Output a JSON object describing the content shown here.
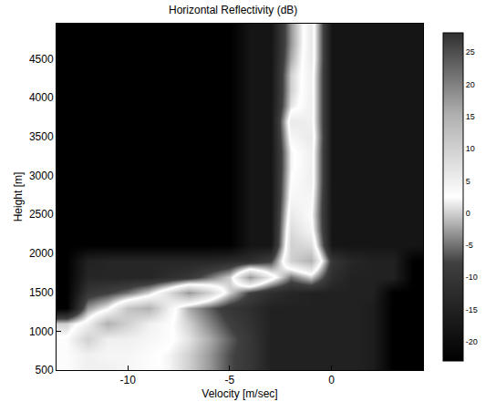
{
  "chart_data": {
    "type": "heatmap",
    "title": "Horizontal Reflectivity (dB)",
    "x_label": "Velocity [m/sec]",
    "y_label": "Height [m]",
    "x": [
      -13,
      -12,
      -11,
      -10,
      -9,
      -8,
      -7,
      -6,
      -5,
      -4,
      -3,
      -2,
      -1,
      0,
      1,
      2,
      3,
      4
    ],
    "y": [
      500,
      700,
      900,
      1100,
      1300,
      1500,
      1700,
      1900,
      2100,
      2300,
      2500,
      2700,
      2900,
      3100,
      3300,
      3500,
      3700,
      3900,
      4100,
      4300,
      4500,
      4700,
      4900
    ],
    "z": [
      [
        3,
        5,
        5,
        4,
        3,
        2,
        0,
        -3,
        -7,
        -10,
        -15,
        -15,
        -15,
        -15,
        -15,
        -16,
        -23,
        -23
      ],
      [
        3,
        5,
        4,
        4,
        3,
        2,
        0,
        -3,
        -7,
        -10,
        -15,
        -15,
        -15,
        -15,
        -15,
        -16,
        -23,
        -23
      ],
      [
        3,
        10,
        5,
        5,
        4,
        3,
        1,
        -2,
        -6,
        -10,
        -15,
        -15,
        -15,
        -15,
        -15,
        -16,
        -23,
        -23
      ],
      [
        0,
        5,
        15,
        10,
        5,
        3,
        0,
        -4,
        -8,
        -11,
        -15,
        -15,
        -15,
        -15,
        -15,
        -16,
        -23,
        -23
      ],
      [
        -23,
        -3,
        2,
        12,
        15,
        5,
        -2,
        -6,
        -10,
        -12,
        -15,
        -15,
        -15,
        -15,
        -15,
        -16,
        -23,
        -23
      ],
      [
        -23,
        -10,
        -8,
        -5,
        0,
        8,
        18,
        10,
        0,
        -8,
        -12,
        -14,
        -15,
        -15,
        -15,
        -15,
        -23,
        -23
      ],
      [
        -23,
        -14,
        -14,
        -14,
        -14,
        -12,
        -10,
        -5,
        0,
        18,
        5,
        -5,
        0,
        -12,
        -15,
        -15,
        -15,
        -23
      ],
      [
        -23,
        -15,
        -14,
        -14,
        -14,
        -14,
        -14,
        -14,
        -13,
        -12,
        -8,
        10,
        15,
        -10,
        -14,
        -15,
        -15,
        -23
      ],
      [
        -23,
        -23,
        -23,
        -23,
        -23,
        -23,
        -23,
        -23,
        -23,
        -18,
        -18,
        10,
        8,
        -18,
        -18,
        -18,
        -18,
        -18
      ],
      [
        -23,
        -23,
        -23,
        -23,
        -23,
        -23,
        -23,
        -23,
        -23,
        -18,
        -18,
        8,
        4,
        -18,
        -18,
        -18,
        -18,
        -18
      ],
      [
        -23,
        -23,
        -23,
        -23,
        -23,
        -23,
        -23,
        -23,
        -23,
        -18,
        -18,
        6,
        3,
        -18,
        -18,
        -18,
        -18,
        -18
      ],
      [
        -23,
        -23,
        -23,
        -23,
        -23,
        -23,
        -23,
        -23,
        -23,
        -18,
        -18,
        4,
        4,
        -18,
        -18,
        -18,
        -18,
        -18
      ],
      [
        -23,
        -23,
        -23,
        -23,
        -23,
        -23,
        -23,
        -23,
        -23,
        -18,
        -18,
        3,
        5,
        -18,
        -18,
        -18,
        -18,
        -18
      ],
      [
        -23,
        -23,
        -23,
        -23,
        -23,
        -23,
        -23,
        -23,
        -23,
        -18,
        -18,
        2,
        5,
        -18,
        -18,
        -18,
        -18,
        -18
      ],
      [
        -23,
        -23,
        -23,
        -23,
        -23,
        -23,
        -23,
        -23,
        -23,
        -18,
        -18,
        2,
        5,
        -18,
        -18,
        -18,
        -18,
        -18
      ],
      [
        -23,
        -23,
        -23,
        -23,
        -23,
        -23,
        -23,
        -23,
        -23,
        -18,
        -18,
        4,
        6,
        -18,
        -18,
        -18,
        -18,
        -18
      ],
      [
        -23,
        -23,
        -23,
        -23,
        -23,
        -23,
        -23,
        -23,
        -23,
        -18,
        -18,
        6,
        5,
        -18,
        -18,
        -18,
        -18,
        -18
      ],
      [
        -23,
        -23,
        -23,
        -23,
        -23,
        -23,
        -23,
        -23,
        -23,
        -18,
        -18,
        1,
        5,
        -18,
        -18,
        -18,
        -18,
        -18
      ],
      [
        -23,
        -23,
        -23,
        -23,
        -23,
        -23,
        -23,
        -23,
        -23,
        -18,
        -18,
        0,
        5,
        -18,
        -18,
        -18,
        -18,
        -18
      ],
      [
        -23,
        -23,
        -23,
        -23,
        -23,
        -23,
        -23,
        -23,
        -23,
        -18,
        -18,
        0,
        5,
        -18,
        -18,
        -18,
        -18,
        -18
      ],
      [
        -23,
        -23,
        -23,
        -23,
        -23,
        -23,
        -23,
        -23,
        -23,
        -18,
        -18,
        -2,
        6,
        -18,
        -18,
        -18,
        -18,
        -18
      ],
      [
        -23,
        -23,
        -23,
        -23,
        -23,
        -23,
        -23,
        -23,
        -23,
        -18,
        -18,
        -3,
        6,
        -18,
        -18,
        -18,
        -18,
        -18
      ],
      [
        -23,
        -23,
        -23,
        -23,
        -23,
        -23,
        -23,
        -23,
        -23,
        -18,
        -18,
        -3,
        6,
        -18,
        -18,
        -18,
        -18,
        -18
      ]
    ],
    "xlim": [
      -13.5,
      4.5
    ],
    "ylim": [
      500,
      4950
    ],
    "xticks": [
      -10,
      -5,
      0
    ],
    "yticks": [
      500,
      1000,
      1500,
      2000,
      2500,
      3000,
      3500,
      4000,
      4500
    ],
    "colorbar_range": [
      -23,
      28
    ],
    "colorbar_ticks": [
      -20,
      -15,
      -10,
      -5,
      0,
      5,
      10,
      15,
      20,
      25
    ]
  }
}
